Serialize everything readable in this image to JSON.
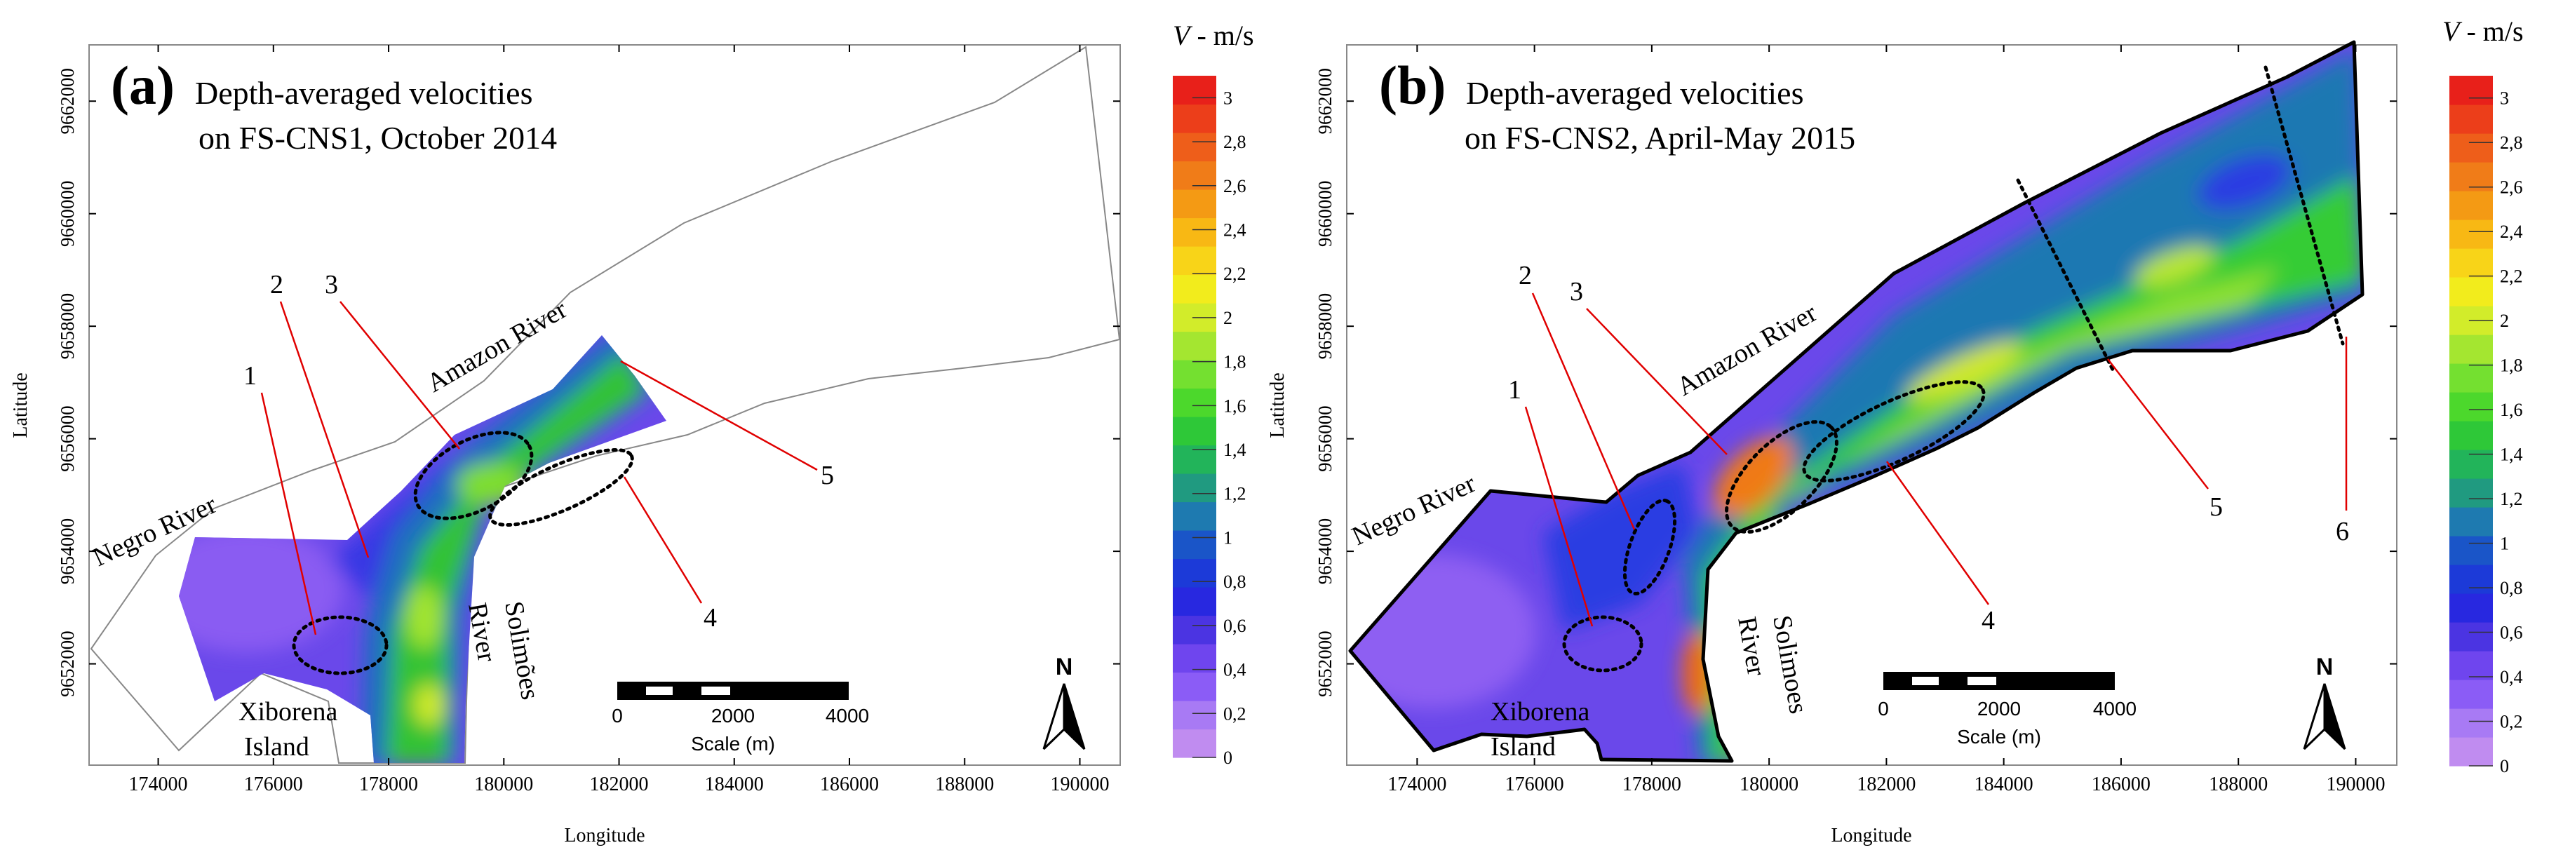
{
  "chart_data": [
    {
      "type": "heatmap",
      "panel_label": "(a)",
      "title_line1": "Depth-averaged velocities",
      "title_line2": "on FS-CNS1, October 2014",
      "xlabel": "Longitude",
      "ylabel": "Latitude",
      "xlim": [
        172800,
        190700
      ],
      "ylim": [
        9650200,
        9663000
      ],
      "x_ticks": [
        174000,
        176000,
        178000,
        180000,
        182000,
        184000,
        186000,
        188000,
        190000
      ],
      "y_ticks": [
        9652000,
        9654000,
        9656000,
        9658000,
        9660000,
        9662000
      ],
      "place_labels": [
        "Negro River",
        "Amazon River",
        "Solimões",
        "River",
        "Xiborena",
        "Island"
      ],
      "callouts": [
        "1",
        "2",
        "3",
        "4",
        "5"
      ],
      "scale_bar": {
        "ticks": [
          "0",
          "2000",
          "4000"
        ],
        "label": "Scale (m)"
      },
      "north_label": "N"
    },
    {
      "type": "heatmap",
      "panel_label": "(b)",
      "title_line1": "Depth-averaged velocities",
      "title_line2": "on FS-CNS2, April-May 2015",
      "xlabel": "Longitude",
      "ylabel": "Latitude",
      "xlim": [
        172800,
        190700
      ],
      "ylim": [
        9650200,
        9663000
      ],
      "x_ticks": [
        174000,
        176000,
        178000,
        180000,
        182000,
        184000,
        186000,
        188000,
        190000
      ],
      "y_ticks": [
        9652000,
        9654000,
        9656000,
        9658000,
        9660000,
        9662000
      ],
      "place_labels": [
        "Negro River",
        "Amazon River",
        "Solimoes",
        "River",
        "Xiborena",
        "Island"
      ],
      "callouts": [
        "1",
        "2",
        "3",
        "4",
        "5",
        "6"
      ],
      "scale_bar": {
        "ticks": [
          "0",
          "2000",
          "4000"
        ],
        "label": "Scale (m)"
      },
      "north_label": "N"
    }
  ],
  "colorbar": {
    "title_var": "V",
    "title_unit": " - m/s",
    "range": [
      0,
      3.1
    ],
    "ticks": [
      "0",
      "0,2",
      "0,4",
      "0,6",
      "0,8",
      "1",
      "1,2",
      "1,4",
      "1,6",
      "1,8",
      "2",
      "2,2",
      "2,4",
      "2,6",
      "2,8",
      "3"
    ],
    "colors": [
      "#c08cf0",
      "#a87af4",
      "#8b5cf6",
      "#6f45ee",
      "#4b34e2",
      "#2828e0",
      "#1c3ad8",
      "#1a55c8",
      "#1e7ab0",
      "#209a80",
      "#22b45a",
      "#2ec838",
      "#4cd82c",
      "#74e030",
      "#a4e630",
      "#d2ec2a",
      "#f2ec1c",
      "#f8d418",
      "#f8b814",
      "#f49a14",
      "#f07c18",
      "#ee5e1a",
      "#ec3e1a",
      "#e8201a"
    ]
  }
}
